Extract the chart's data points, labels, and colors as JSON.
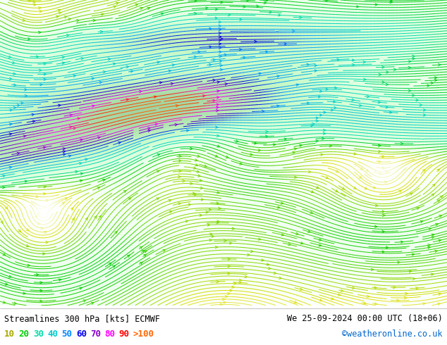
{
  "title_left": "Streamlines 300 hPa [kts] ECMWF",
  "title_right": "We 25-09-2024 00:00 UTC (18+06)",
  "credit": "©weatheronline.co.uk",
  "legend_values": [
    "10",
    "20",
    "30",
    "40",
    "50",
    "60",
    "70",
    "80",
    "90",
    ">100"
  ],
  "legend_colors": [
    "#aaaa00",
    "#00cc00",
    "#00ddaa",
    "#00cccc",
    "#0088ff",
    "#0000ee",
    "#8800cc",
    "#ff00ff",
    "#ff0000",
    "#ff6600"
  ],
  "bg_color": "#ffffff",
  "figsize": [
    6.34,
    4.9
  ],
  "dpi": 100,
  "seed": 42
}
